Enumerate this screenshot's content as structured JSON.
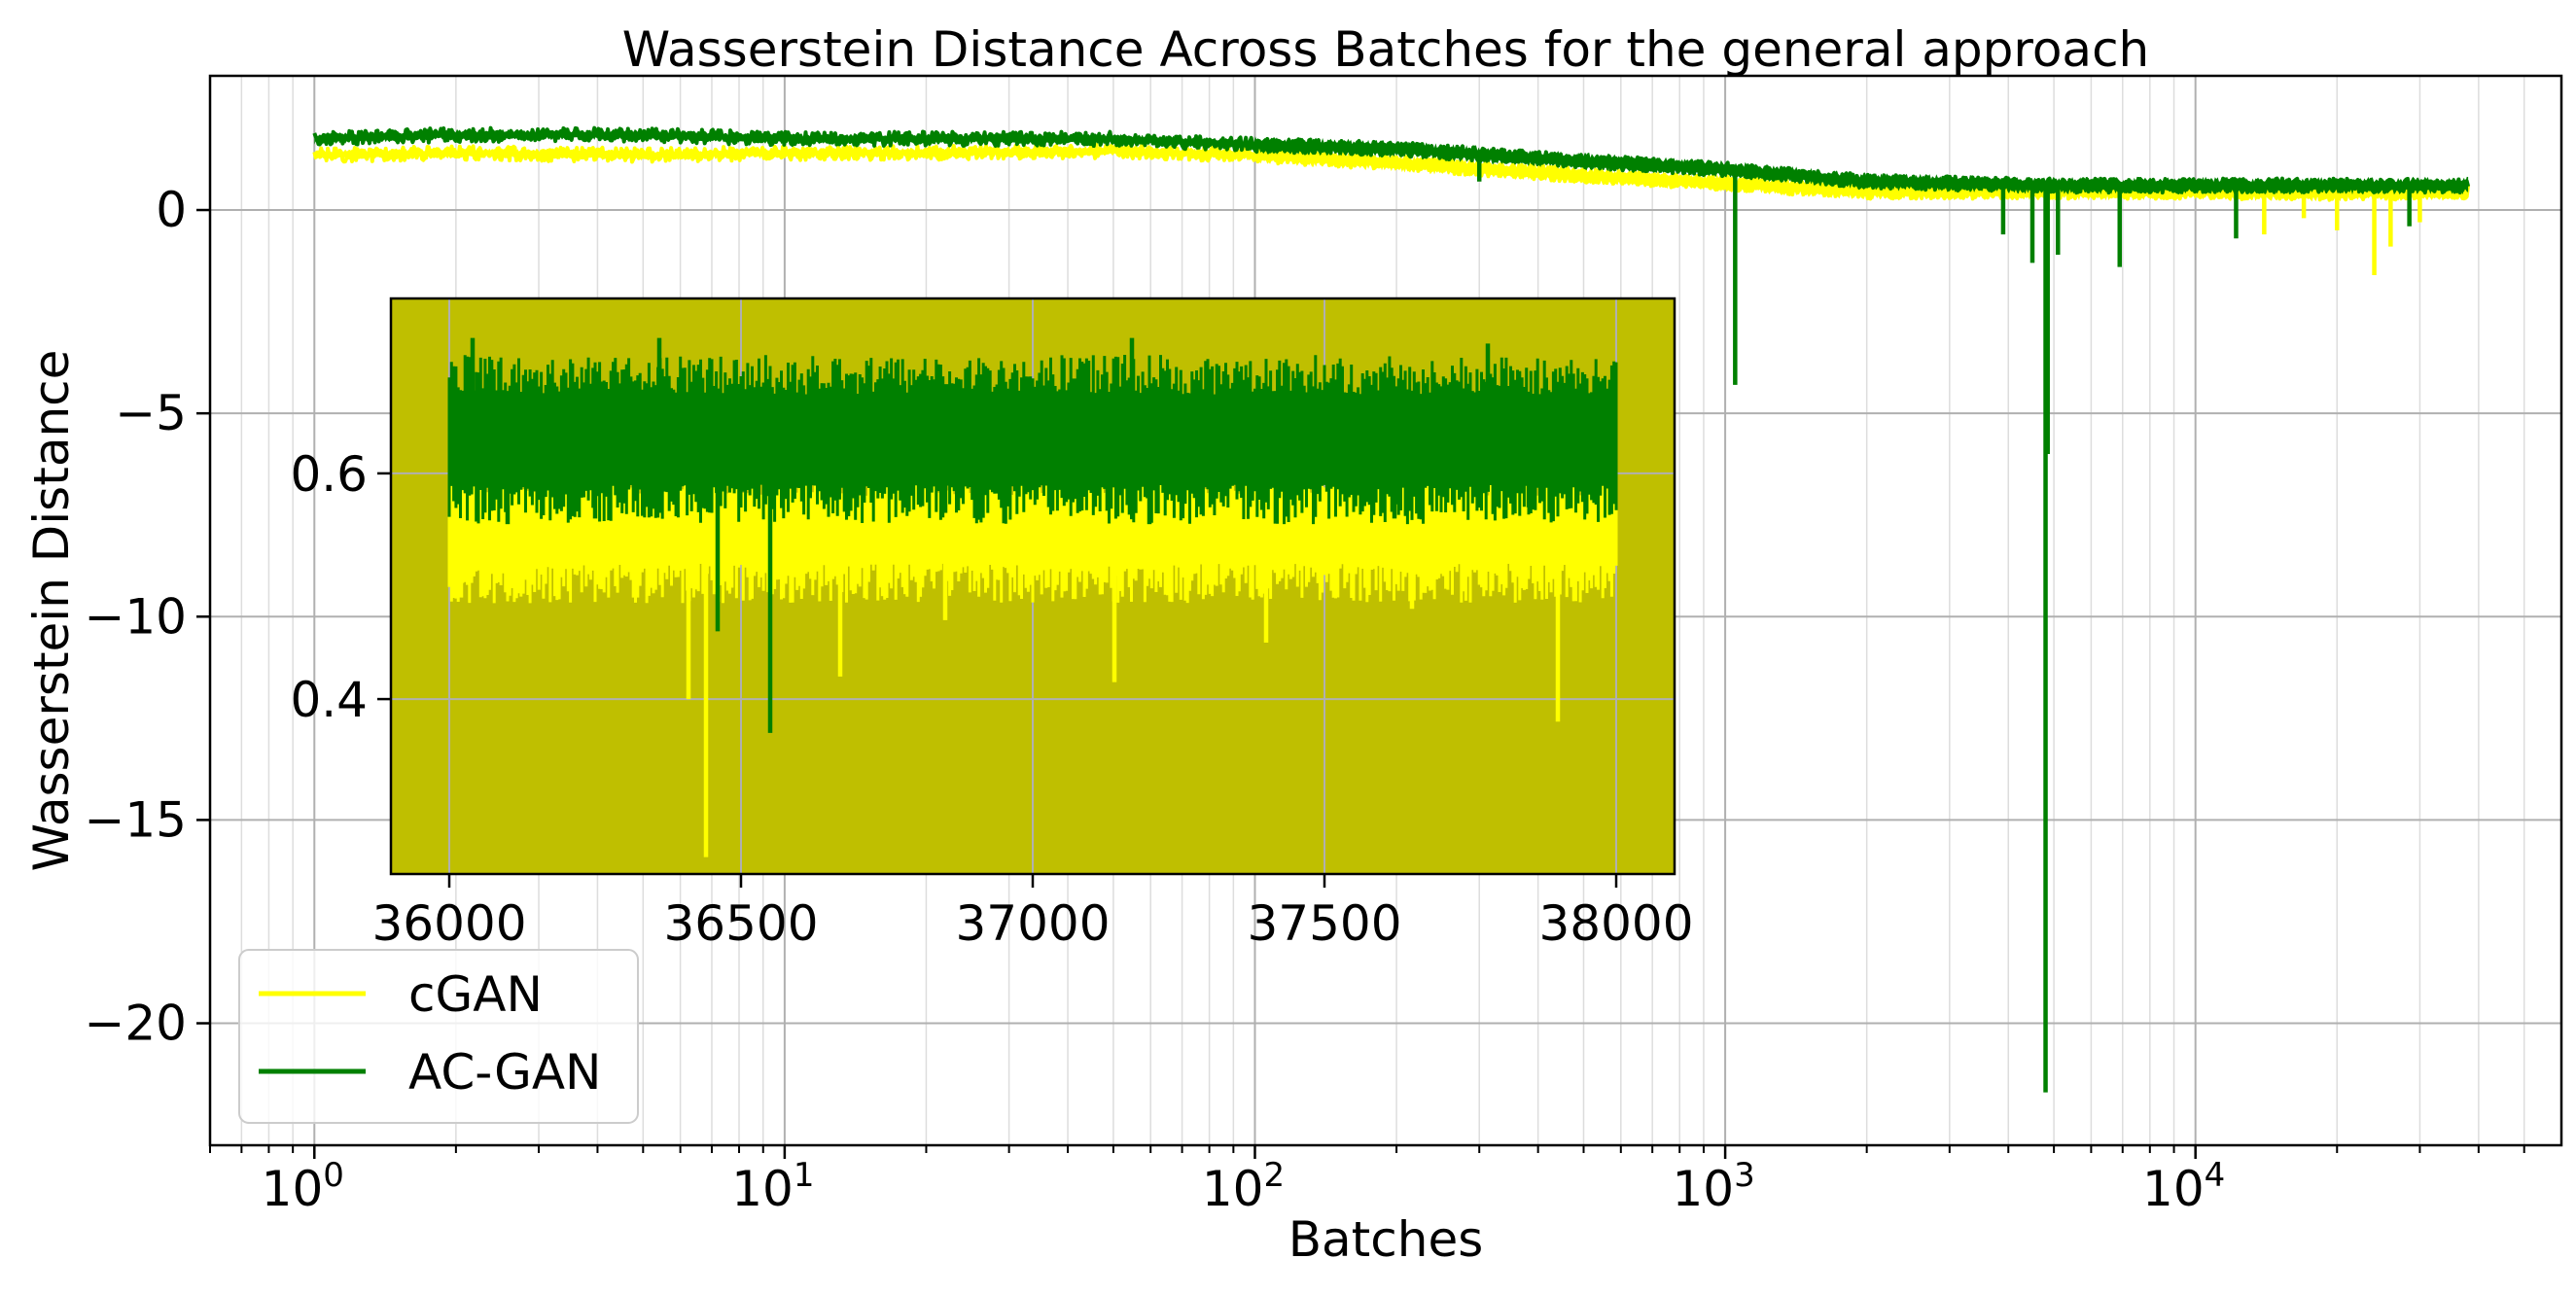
{
  "chart_data": [
    {
      "id": "main",
      "type": "line",
      "title": "Wasserstein Distance Across Batches for the general approach",
      "xlabel": "Batches",
      "ylabel": "Wasserstein Distance",
      "xscale": "log",
      "xlim": [
        0.6,
        60000
      ],
      "ylim": [
        -23,
        3.3
      ],
      "grid": true,
      "x_ticks": [
        {
          "value": 1,
          "base": "10",
          "exp": "0"
        },
        {
          "value": 10,
          "base": "10",
          "exp": "1"
        },
        {
          "value": 100,
          "base": "10",
          "exp": "2"
        },
        {
          "value": 1000,
          "base": "10",
          "exp": "3"
        },
        {
          "value": 10000,
          "base": "10",
          "exp": "4"
        }
      ],
      "y_ticks": [
        {
          "value": 0,
          "label": "0"
        },
        {
          "value": -5,
          "label": "−5"
        },
        {
          "value": -10,
          "label": "−10"
        },
        {
          "value": -15,
          "label": "−15"
        },
        {
          "value": -20,
          "label": "−20"
        }
      ],
      "legend": {
        "position": "lower-left"
      },
      "series": [
        {
          "name": "cGAN",
          "color": "#ffff00",
          "x": [
            1,
            2,
            5,
            10,
            20,
            50,
            100,
            200,
            500,
            1000,
            2000,
            5000,
            10000,
            20000,
            38000
          ],
          "y": [
            1.35,
            1.4,
            1.35,
            1.4,
            1.4,
            1.45,
            1.35,
            1.15,
            0.85,
            0.65,
            0.45,
            0.45,
            0.45,
            0.42,
            0.45
          ],
          "spikes": [
            {
              "x": 24000,
              "y": -1.6
            },
            {
              "x": 26000,
              "y": -0.9
            },
            {
              "x": 14000,
              "y": -0.6
            },
            {
              "x": 20000,
              "y": -0.5
            },
            {
              "x": 30000,
              "y": -0.3
            },
            {
              "x": 17000,
              "y": -0.2
            }
          ]
        },
        {
          "name": "AC-GAN",
          "color": "#008000",
          "x": [
            1,
            2,
            5,
            10,
            20,
            50,
            100,
            200,
            500,
            1000,
            2000,
            5000,
            10000,
            20000,
            38000
          ],
          "y": [
            1.75,
            1.85,
            1.85,
            1.75,
            1.75,
            1.75,
            1.6,
            1.5,
            1.2,
            1.0,
            0.7,
            0.6,
            0.6,
            0.6,
            0.6
          ],
          "spikes": [
            {
              "x": 4800,
              "y": -21.7
            },
            {
              "x": 4850,
              "y": -6.0
            },
            {
              "x": 1050,
              "y": -4.3
            },
            {
              "x": 4500,
              "y": -1.3
            },
            {
              "x": 5100,
              "y": -1.1
            },
            {
              "x": 6900,
              "y": -1.4
            },
            {
              "x": 12200,
              "y": -0.7
            },
            {
              "x": 28500,
              "y": -0.4
            },
            {
              "x": 3900,
              "y": -0.6
            },
            {
              "x": 300,
              "y": 0.7
            }
          ]
        }
      ]
    },
    {
      "id": "inset",
      "type": "line",
      "title": "",
      "xlabel": "",
      "ylabel": "",
      "xlim": [
        35900,
        38100
      ],
      "ylim": [
        0.245,
        0.755
      ],
      "background": "#bfbf00",
      "x_ticks": [
        {
          "value": 36000,
          "label": "36000"
        },
        {
          "value": 36500,
          "label": "36500"
        },
        {
          "value": 37000,
          "label": "37000"
        },
        {
          "value": 37500,
          "label": "37500"
        },
        {
          "value": 38000,
          "label": "38000"
        }
      ],
      "y_ticks": [
        {
          "value": 0.6,
          "label": "0.6"
        },
        {
          "value": 0.4,
          "label": "0.4"
        }
      ],
      "series": [
        {
          "name": "cGAN",
          "color": "#ffff00",
          "band": [
            0.52,
            0.58
          ],
          "x_range": [
            36000,
            38000
          ],
          "spikes": [
            {
              "x": 36440,
              "y": 0.26
            },
            {
              "x": 36410,
              "y": 0.4
            },
            {
              "x": 36670,
              "y": 0.42
            },
            {
              "x": 37140,
              "y": 0.415
            },
            {
              "x": 36020,
              "y": 0.49
            },
            {
              "x": 37400,
              "y": 0.45
            },
            {
              "x": 37900,
              "y": 0.38
            },
            {
              "x": 36850,
              "y": 0.47
            },
            {
              "x": 37650,
              "y": 0.48
            }
          ]
        },
        {
          "name": "AC-GAN",
          "color": "#008000",
          "band": [
            0.59,
            0.67
          ],
          "x_range": [
            36000,
            38000
          ],
          "spikes": [
            {
              "x": 36460,
              "y": 0.46
            },
            {
              "x": 36550,
              "y": 0.37
            },
            {
              "x": 36100,
              "y": 0.555
            },
            {
              "x": 36850,
              "y": 0.565
            },
            {
              "x": 37200,
              "y": 0.555
            },
            {
              "x": 37620,
              "y": 0.56
            },
            {
              "x": 36250,
              "y": 0.56
            },
            {
              "x": 37850,
              "y": 0.57
            },
            {
              "x": 36040,
              "y": 0.72
            },
            {
              "x": 36360,
              "y": 0.72
            },
            {
              "x": 37170,
              "y": 0.72
            },
            {
              "x": 37780,
              "y": 0.715
            }
          ]
        }
      ]
    }
  ]
}
